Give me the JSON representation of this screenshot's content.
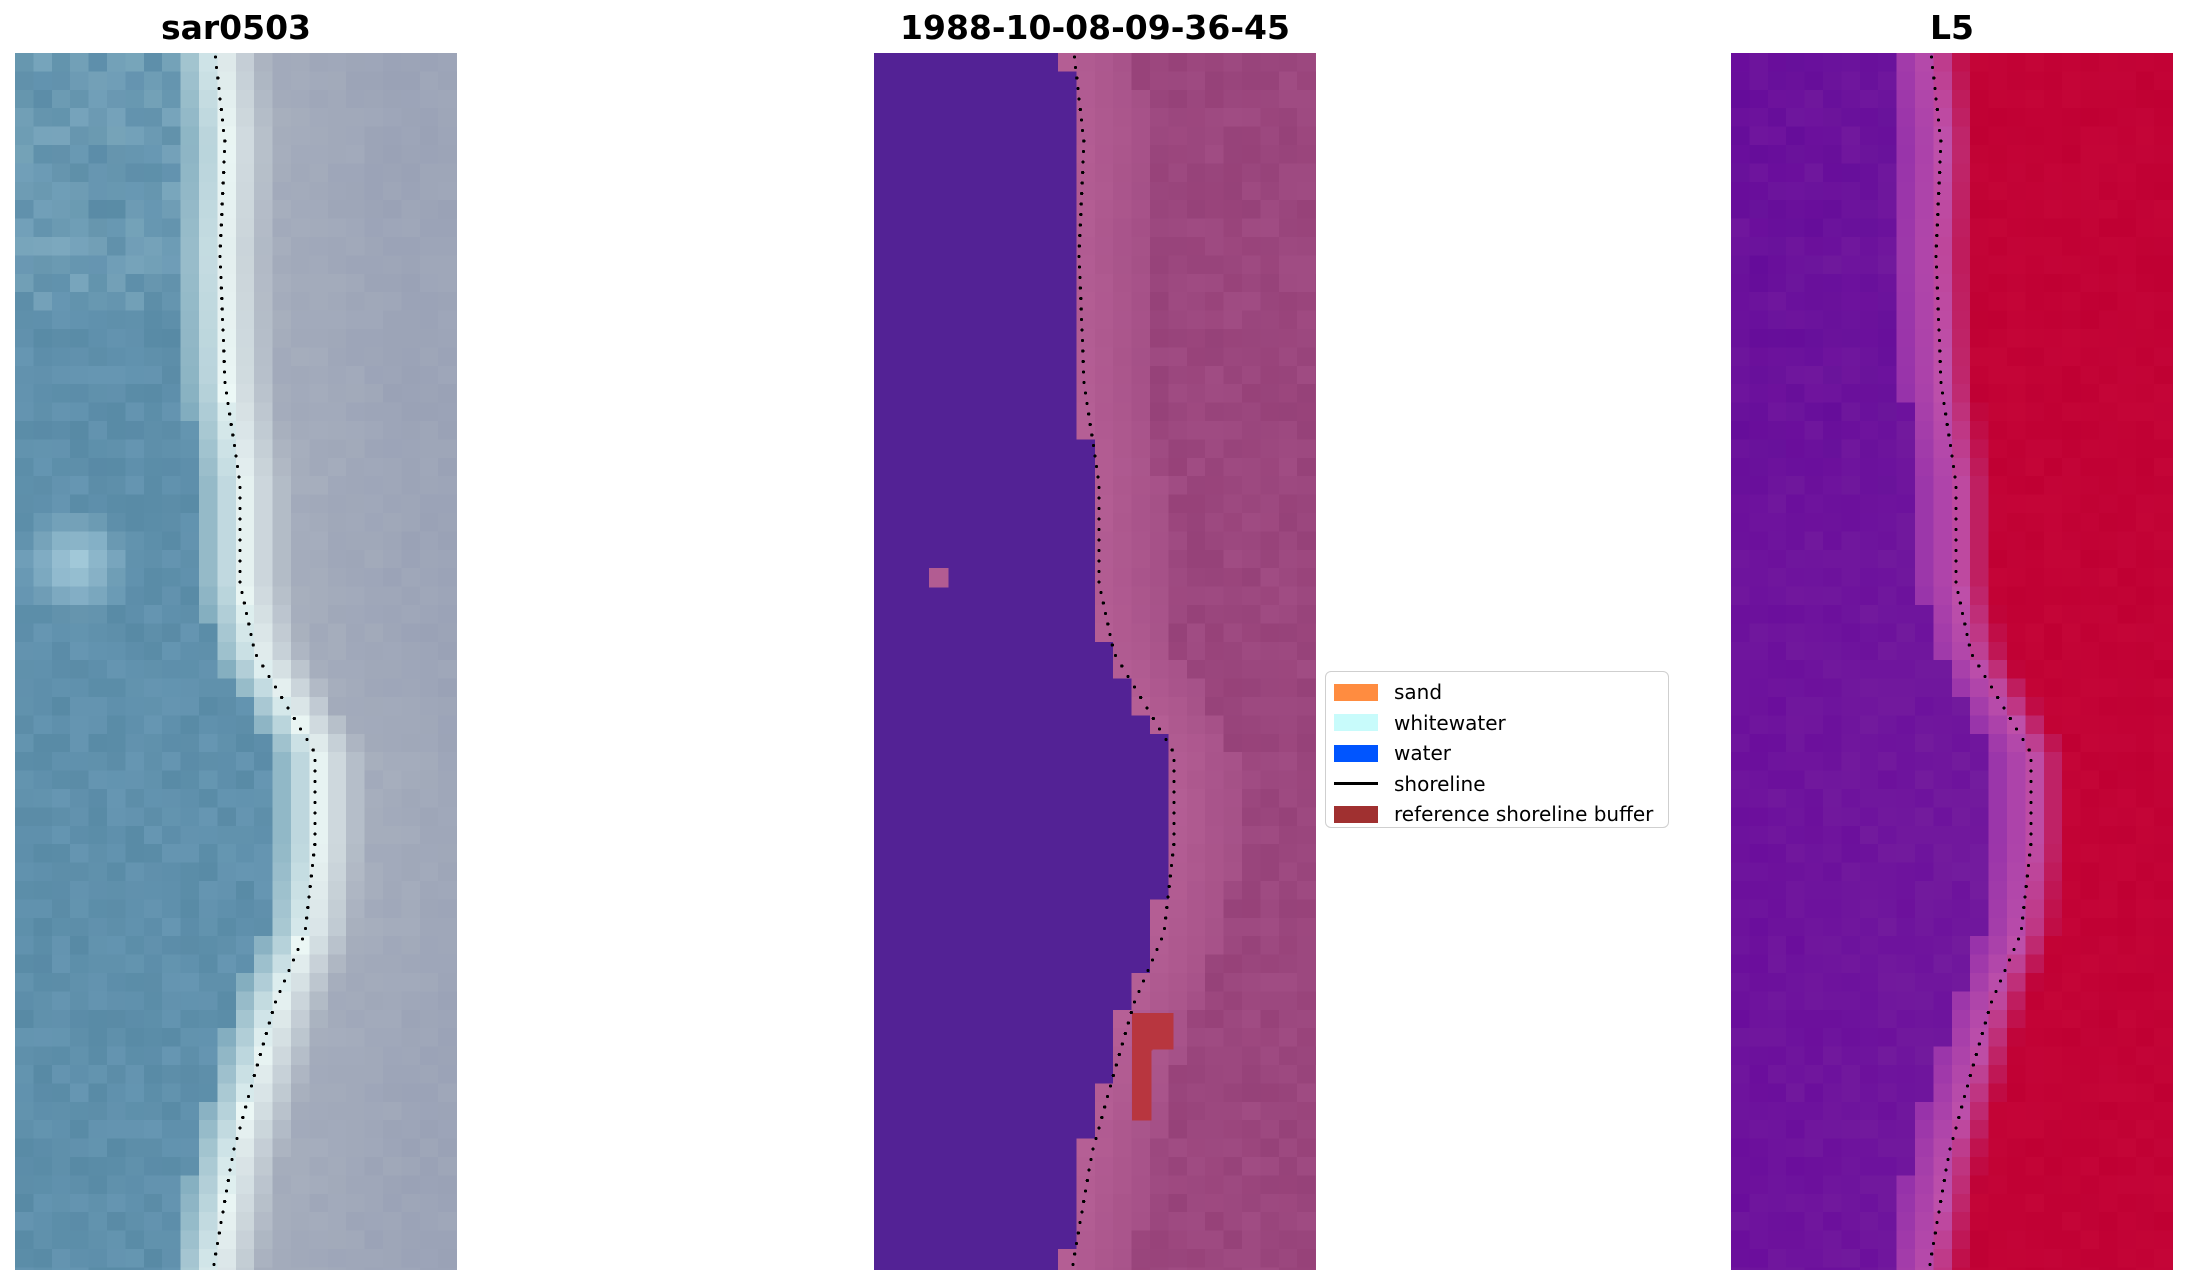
{
  "panels": [
    {
      "title": "sar0503"
    },
    {
      "title": "1988-10-08-09-36-45"
    },
    {
      "title": "L5"
    }
  ],
  "legend": {
    "items": [
      {
        "label": "sand",
        "type": "patch",
        "color": "#ff8c40"
      },
      {
        "label": "whitewater",
        "type": "patch",
        "color": "#c8fbfb"
      },
      {
        "label": "water",
        "type": "patch",
        "color": "#0055ff"
      },
      {
        "label": "shoreline",
        "type": "line",
        "color": "#000000"
      },
      {
        "label": "reference shoreline buffer",
        "type": "patch",
        "color": "#a03030"
      }
    ]
  },
  "colors": {
    "classified_water": "#532295",
    "classified_land": "#a04c83",
    "reference_buffer": "#b8363f",
    "mndwi_water": "#6a0d9c",
    "mndwi_land": "#c00033"
  }
}
